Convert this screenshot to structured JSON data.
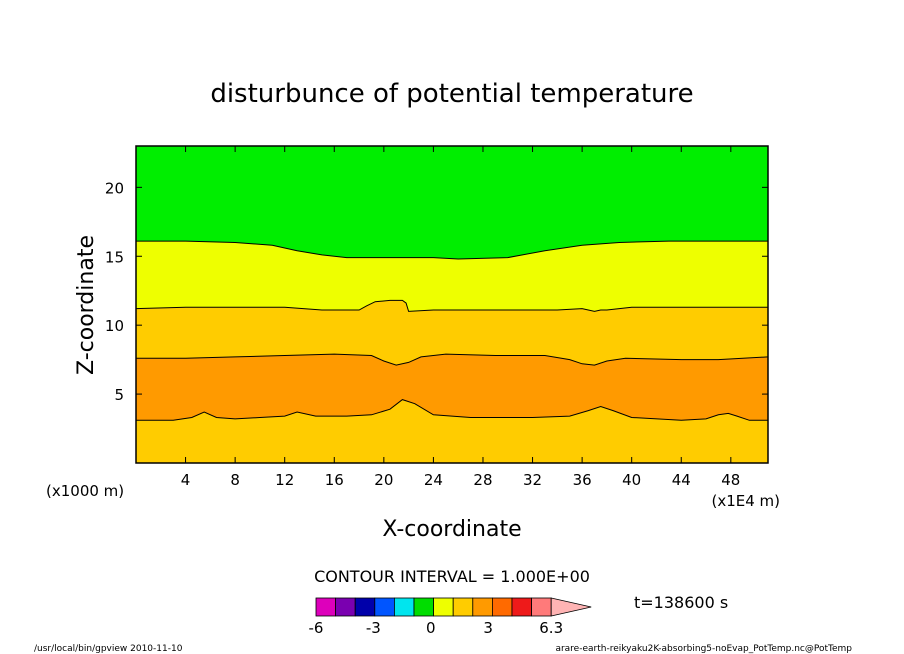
{
  "chart_data": {
    "type": "contour",
    "title": "disturbunce of potential temperature",
    "xlabel": "X-coordinate",
    "ylabel": "Z-coordinate",
    "x_unit_left": "(x1000 m)",
    "x_unit_right": "(x1E4 m)",
    "xlim": [
      0,
      51
    ],
    "ylim": [
      0,
      23
    ],
    "x_ticks": [
      4,
      8,
      12,
      16,
      20,
      24,
      28,
      32,
      36,
      40,
      44,
      48
    ],
    "y_ticks": [
      5,
      10,
      15,
      20
    ],
    "contour_interval_label": "CONTOUR INTERVAL = 1.000E+00",
    "time_label": "t=138600 s",
    "colorbar": {
      "colors": [
        "#dd00bb",
        "#7a00b0",
        "#0000aa",
        "#0055ff",
        "#00e5ee",
        "#00dd00",
        "#eeff00",
        "#ffcc00",
        "#ff9a00",
        "#ff6a00",
        "#ee1a1a",
        "#ff7a7a",
        "#ffb4b4"
      ],
      "tick_labels": [
        {
          "value": -6,
          "label": "-6"
        },
        {
          "value": -3,
          "label": "-3"
        },
        {
          "value": 0,
          "label": "0"
        },
        {
          "value": 3,
          "label": "3"
        },
        {
          "value": 6.3,
          "label": "6.3"
        }
      ]
    },
    "bands": [
      {
        "name": "band_0_1",
        "color": "#ffcc00"
      },
      {
        "name": "band_1_2",
        "color": "#ff9a00"
      },
      {
        "name": "band_2_3",
        "color": "#ffcc00"
      },
      {
        "name": "band_3_4",
        "color": "#eeff00"
      },
      {
        "name": "band_4_5",
        "color": "#00ee00"
      }
    ],
    "contours": [
      {
        "name": "contour_a",
        "points": [
          [
            0,
            3.1
          ],
          [
            3,
            3.1
          ],
          [
            4.5,
            3.3
          ],
          [
            5.5,
            3.7
          ],
          [
            6.5,
            3.3
          ],
          [
            8,
            3.2
          ],
          [
            10,
            3.3
          ],
          [
            12,
            3.4
          ],
          [
            13,
            3.7
          ],
          [
            14.5,
            3.4
          ],
          [
            17,
            3.4
          ],
          [
            19,
            3.5
          ],
          [
            20.5,
            3.9
          ],
          [
            21.5,
            4.6
          ],
          [
            22.5,
            4.3
          ],
          [
            24,
            3.5
          ],
          [
            27,
            3.3
          ],
          [
            32,
            3.3
          ],
          [
            35,
            3.4
          ],
          [
            36.5,
            3.8
          ],
          [
            37.5,
            4.1
          ],
          [
            38.5,
            3.8
          ],
          [
            40,
            3.3
          ],
          [
            44,
            3.1
          ],
          [
            46,
            3.2
          ],
          [
            47,
            3.5
          ],
          [
            47.8,
            3.6
          ],
          [
            48.5,
            3.4
          ],
          [
            49.5,
            3.1
          ],
          [
            51,
            3.1
          ]
        ]
      },
      {
        "name": "contour_b",
        "points": [
          [
            0,
            7.6
          ],
          [
            4,
            7.6
          ],
          [
            8,
            7.7
          ],
          [
            12,
            7.8
          ],
          [
            16,
            7.9
          ],
          [
            19,
            7.8
          ],
          [
            20,
            7.4
          ],
          [
            21,
            7.1
          ],
          [
            22,
            7.3
          ],
          [
            23,
            7.7
          ],
          [
            25,
            7.9
          ],
          [
            29,
            7.8
          ],
          [
            33,
            7.8
          ],
          [
            35,
            7.5
          ],
          [
            36,
            7.2
          ],
          [
            37,
            7.1
          ],
          [
            38,
            7.4
          ],
          [
            39.5,
            7.6
          ],
          [
            44,
            7.5
          ],
          [
            47,
            7.5
          ],
          [
            51,
            7.7
          ]
        ]
      },
      {
        "name": "contour_c",
        "points": [
          [
            0,
            11.2
          ],
          [
            4,
            11.3
          ],
          [
            8,
            11.3
          ],
          [
            12,
            11.3
          ],
          [
            15,
            11.1
          ],
          [
            18,
            11.1
          ],
          [
            18.6,
            11.4
          ],
          [
            19.3,
            11.7
          ],
          [
            20.5,
            11.8
          ],
          [
            21.5,
            11.8
          ],
          [
            21.8,
            11.6
          ],
          [
            22,
            11.0
          ],
          [
            24,
            11.1
          ],
          [
            30,
            11.1
          ],
          [
            34,
            11.1
          ],
          [
            36,
            11.2
          ],
          [
            36.5,
            11.1
          ],
          [
            37,
            11.0
          ],
          [
            37.5,
            11.1
          ],
          [
            38,
            11.1
          ],
          [
            40,
            11.3
          ],
          [
            44,
            11.3
          ],
          [
            51,
            11.3
          ]
        ]
      },
      {
        "name": "contour_d",
        "points": [
          [
            0,
            16.1
          ],
          [
            4,
            16.1
          ],
          [
            8,
            16.0
          ],
          [
            11,
            15.8
          ],
          [
            13,
            15.4
          ],
          [
            15,
            15.1
          ],
          [
            17,
            14.9
          ],
          [
            20,
            14.9
          ],
          [
            24,
            14.9
          ],
          [
            26,
            14.8
          ],
          [
            30,
            14.9
          ],
          [
            33,
            15.4
          ],
          [
            36,
            15.8
          ],
          [
            39,
            16.0
          ],
          [
            43,
            16.1
          ],
          [
            47,
            16.1
          ],
          [
            51,
            16.1
          ]
        ]
      }
    ]
  },
  "footer": {
    "left": "/usr/local/bin/gpview  2010-11-10",
    "right": "arare-earth-reikyaku2K-absorbing5-noEvap_PotTemp.nc@PotTemp"
  }
}
